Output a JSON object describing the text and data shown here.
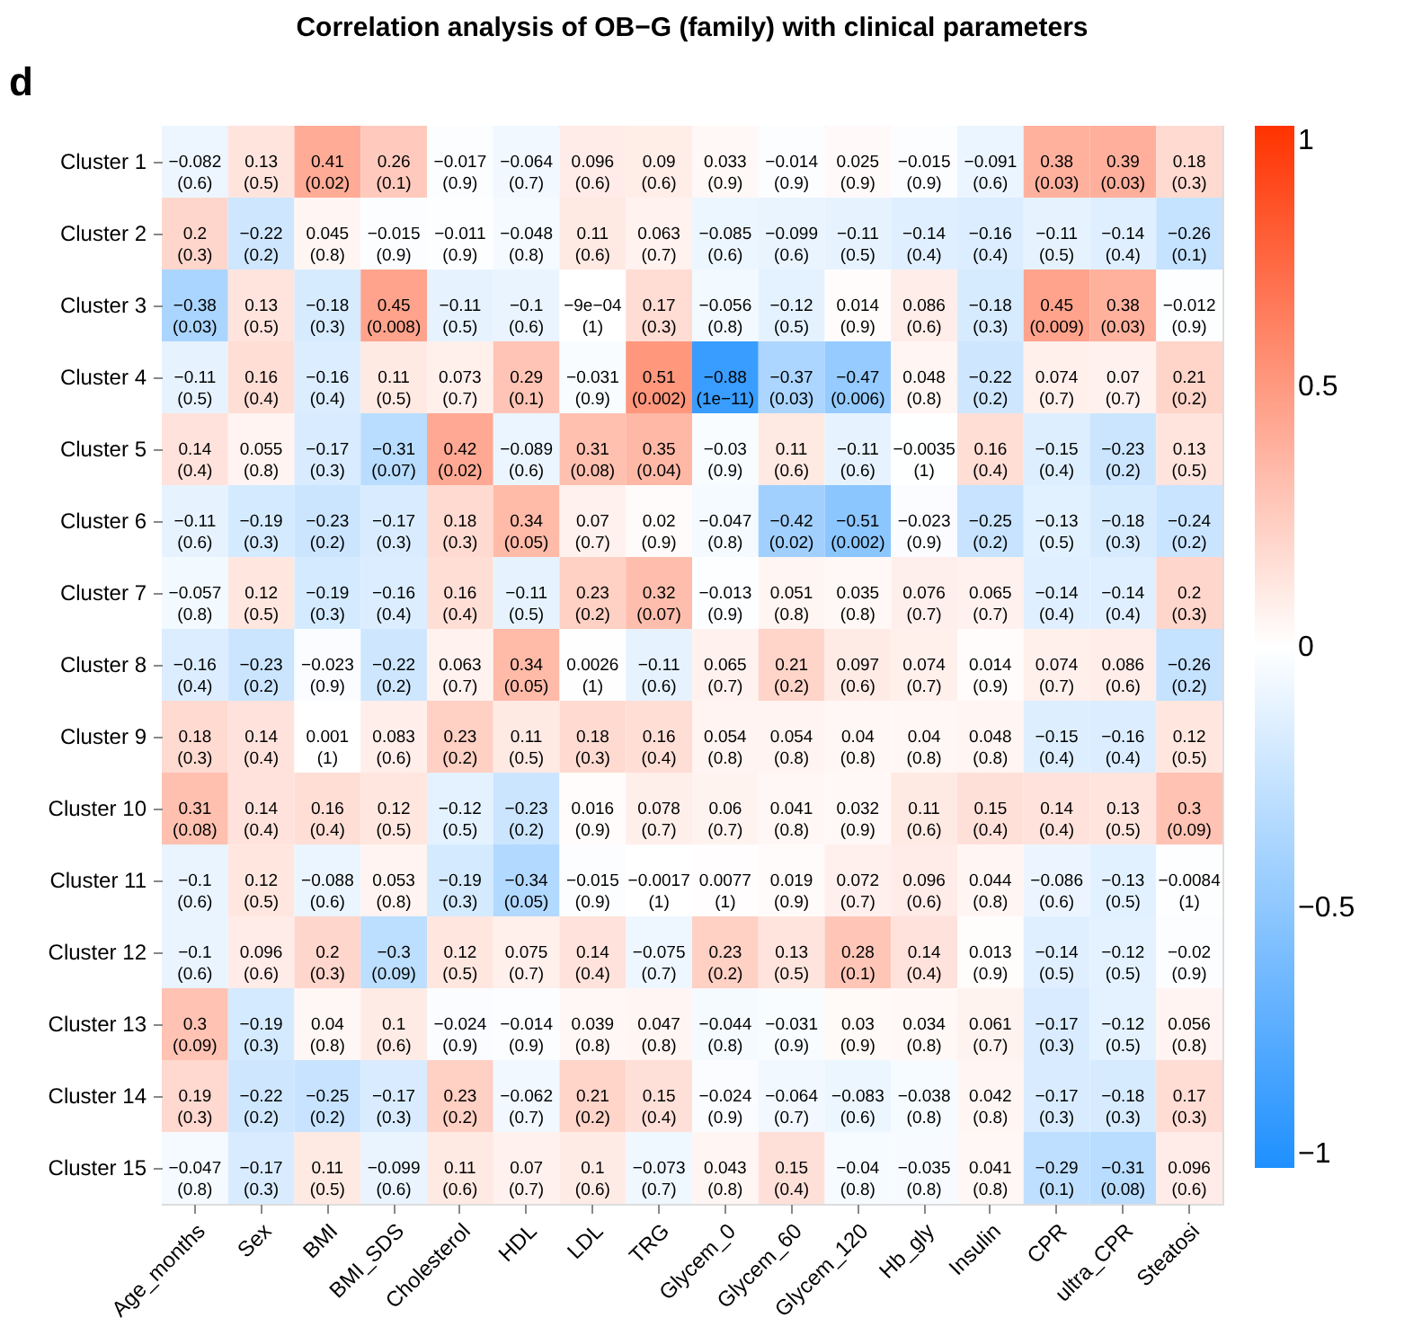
{
  "chart_data": {
    "type": "heatmap",
    "title": "Correlation analysis of OB−G (family) with clinical parameters",
    "annotations": [
      "d"
    ],
    "categories": [
      "Age_months",
      "Sex",
      "BMI",
      "BMI_SDS",
      "Cholesterol",
      "HDL",
      "LDL",
      "TRG",
      "Glycem_0",
      "Glycem_60",
      "Glycem_120",
      "Hb_gly",
      "Insulin",
      "CPR",
      "ultra_CPR",
      "Steatosi"
    ],
    "y_categories": [
      "Cluster 1",
      "Cluster 2",
      "Cluster 3",
      "Cluster 4",
      "Cluster 5",
      "Cluster 6",
      "Cluster 7",
      "Cluster 8",
      "Cluster 9",
      "Cluster 10",
      "Cluster 11",
      "Cluster 12",
      "Cluster 13",
      "Cluster 14",
      "Cluster 15"
    ],
    "cells": [
      [
        -0.082,
        0.13,
        0.41,
        0.26,
        -0.017,
        -0.064,
        0.096,
        0.09,
        0.033,
        -0.014,
        0.025,
        -0.015,
        -0.091,
        0.38,
        0.39,
        0.18
      ],
      [
        0.2,
        -0.22,
        0.045,
        -0.015,
        -0.011,
        -0.048,
        0.11,
        0.063,
        -0.085,
        -0.099,
        -0.11,
        -0.14,
        -0.16,
        -0.11,
        -0.14,
        -0.26
      ],
      [
        -0.38,
        0.13,
        -0.18,
        0.45,
        -0.11,
        -0.1,
        -0.0009,
        0.17,
        -0.056,
        -0.12,
        0.014,
        0.086,
        -0.18,
        0.45,
        0.38,
        -0.012
      ],
      [
        -0.11,
        0.16,
        -0.16,
        0.11,
        0.073,
        0.29,
        -0.031,
        0.51,
        -0.88,
        -0.37,
        -0.47,
        0.048,
        -0.22,
        0.074,
        0.07,
        0.21
      ],
      [
        0.14,
        0.055,
        -0.17,
        -0.31,
        0.42,
        -0.089,
        0.31,
        0.35,
        -0.03,
        0.11,
        -0.11,
        -0.0035,
        0.16,
        -0.15,
        -0.23,
        0.13
      ],
      [
        -0.11,
        -0.19,
        -0.23,
        -0.17,
        0.18,
        0.34,
        0.07,
        0.02,
        -0.047,
        -0.42,
        -0.51,
        -0.023,
        -0.25,
        -0.13,
        -0.18,
        -0.24
      ],
      [
        -0.057,
        0.12,
        -0.19,
        -0.16,
        0.16,
        -0.11,
        0.23,
        0.32,
        -0.013,
        0.051,
        0.035,
        0.076,
        0.065,
        -0.14,
        -0.14,
        0.2
      ],
      [
        -0.16,
        -0.23,
        -0.023,
        -0.22,
        0.063,
        0.34,
        0.0026,
        -0.11,
        0.065,
        0.21,
        0.097,
        0.074,
        0.014,
        0.074,
        0.086,
        -0.26
      ],
      [
        0.18,
        0.14,
        0.001,
        0.083,
        0.23,
        0.11,
        0.18,
        0.16,
        0.054,
        0.054,
        0.04,
        0.04,
        0.048,
        -0.15,
        -0.16,
        0.12
      ],
      [
        0.31,
        0.14,
        0.16,
        0.12,
        -0.12,
        -0.23,
        0.016,
        0.078,
        0.06,
        0.041,
        0.032,
        0.11,
        0.15,
        0.14,
        0.13,
        0.3
      ],
      [
        -0.1,
        0.12,
        -0.088,
        0.053,
        -0.19,
        -0.34,
        -0.015,
        -0.0017,
        0.0077,
        0.019,
        0.072,
        0.096,
        0.044,
        -0.086,
        -0.13,
        -0.0084
      ],
      [
        -0.1,
        0.096,
        0.2,
        -0.3,
        0.12,
        0.075,
        0.14,
        -0.075,
        0.23,
        0.13,
        0.28,
        0.14,
        0.013,
        -0.14,
        -0.12,
        -0.02
      ],
      [
        0.3,
        -0.19,
        0.04,
        0.1,
        -0.024,
        -0.014,
        0.039,
        0.047,
        -0.044,
        -0.031,
        0.03,
        0.034,
        0.061,
        -0.17,
        -0.12,
        0.056
      ],
      [
        0.19,
        -0.22,
        -0.25,
        -0.17,
        0.23,
        -0.062,
        0.21,
        0.15,
        -0.024,
        -0.064,
        -0.083,
        -0.038,
        0.042,
        -0.17,
        -0.18,
        0.17
      ],
      [
        -0.047,
        -0.17,
        0.11,
        -0.099,
        0.11,
        0.07,
        0.1,
        -0.073,
        0.043,
        0.15,
        -0.04,
        -0.035,
        0.041,
        -0.29,
        -0.31,
        0.096
      ]
    ],
    "cell_labels": [
      [
        "−0.082\n(0.6)",
        "0.13\n(0.5)",
        "0.41\n(0.02)",
        "0.26\n(0.1)",
        "−0.017\n(0.9)",
        "−0.064\n(0.7)",
        "0.096\n(0.6)",
        "0.09\n(0.6)",
        "0.033\n(0.9)",
        "−0.014\n(0.9)",
        "0.025\n(0.9)",
        "−0.015\n(0.9)",
        "−0.091\n(0.6)",
        "0.38\n(0.03)",
        "0.39\n(0.03)",
        "0.18\n(0.3)"
      ],
      [
        "0.2\n(0.3)",
        "−0.22\n(0.2)",
        "0.045\n(0.8)",
        "−0.015\n(0.9)",
        "−0.011\n(0.9)",
        "−0.048\n(0.8)",
        "0.11\n(0.6)",
        "0.063\n(0.7)",
        "−0.085\n(0.6)",
        "−0.099\n(0.6)",
        "−0.11\n(0.5)",
        "−0.14\n(0.4)",
        "−0.16\n(0.4)",
        "−0.11\n(0.5)",
        "−0.14\n(0.4)",
        "−0.26\n(0.1)"
      ],
      [
        "−0.38\n(0.03)",
        "0.13\n(0.5)",
        "−0.18\n(0.3)",
        "0.45\n(0.008)",
        "−0.11\n(0.5)",
        "−0.1\n(0.6)",
        "−9e−04\n(1)",
        "0.17\n(0.3)",
        "−0.056\n(0.8)",
        "−0.12\n(0.5)",
        "0.014\n(0.9)",
        "0.086\n(0.6)",
        "−0.18\n(0.3)",
        "0.45\n(0.009)",
        "0.38\n(0.03)",
        "−0.012\n(0.9)"
      ],
      [
        "−0.11\n(0.5)",
        "0.16\n(0.4)",
        "−0.16\n(0.4)",
        "0.11\n(0.5)",
        "0.073\n(0.7)",
        "0.29\n(0.1)",
        "−0.031\n(0.9)",
        "0.51\n(0.002)",
        "−0.88\n(1e−11)",
        "−0.37\n(0.03)",
        "−0.47\n(0.006)",
        "0.048\n(0.8)",
        "−0.22\n(0.2)",
        "0.074\n(0.7)",
        "0.07\n(0.7)",
        "0.21\n(0.2)"
      ],
      [
        "0.14\n(0.4)",
        "0.055\n(0.8)",
        "−0.17\n(0.3)",
        "−0.31\n(0.07)",
        "0.42\n(0.02)",
        "−0.089\n(0.6)",
        "0.31\n(0.08)",
        "0.35\n(0.04)",
        "−0.03\n(0.9)",
        "0.11\n(0.6)",
        "−0.11\n(0.6)",
        "−0.0035\n(1)",
        "0.16\n(0.4)",
        "−0.15\n(0.4)",
        "−0.23\n(0.2)",
        "0.13\n(0.5)"
      ],
      [
        "−0.11\n(0.6)",
        "−0.19\n(0.3)",
        "−0.23\n(0.2)",
        "−0.17\n(0.3)",
        "0.18\n(0.3)",
        "0.34\n(0.05)",
        "0.07\n(0.7)",
        "0.02\n(0.9)",
        "−0.047\n(0.8)",
        "−0.42\n(0.02)",
        "−0.51\n(0.002)",
        "−0.023\n(0.9)",
        "−0.25\n(0.2)",
        "−0.13\n(0.5)",
        "−0.18\n(0.3)",
        "−0.24\n(0.2)"
      ],
      [
        "−0.057\n(0.8)",
        "0.12\n(0.5)",
        "−0.19\n(0.3)",
        "−0.16\n(0.4)",
        "0.16\n(0.4)",
        "−0.11\n(0.5)",
        "0.23\n(0.2)",
        "0.32\n(0.07)",
        "−0.013\n(0.9)",
        "0.051\n(0.8)",
        "0.035\n(0.8)",
        "0.076\n(0.7)",
        "0.065\n(0.7)",
        "−0.14\n(0.4)",
        "−0.14\n(0.4)",
        "0.2\n(0.3)"
      ],
      [
        "−0.16\n(0.4)",
        "−0.23\n(0.2)",
        "−0.023\n(0.9)",
        "−0.22\n(0.2)",
        "0.063\n(0.7)",
        "0.34\n(0.05)",
        "0.0026\n(1)",
        "−0.11\n(0.6)",
        "0.065\n(0.7)",
        "0.21\n(0.2)",
        "0.097\n(0.6)",
        "0.074\n(0.7)",
        "0.014\n(0.9)",
        "0.074\n(0.7)",
        "0.086\n(0.6)",
        "−0.26\n(0.2)"
      ],
      [
        "0.18\n(0.3)",
        "0.14\n(0.4)",
        "0.001\n(1)",
        "0.083\n(0.6)",
        "0.23\n(0.2)",
        "0.11\n(0.5)",
        "0.18\n(0.3)",
        "0.16\n(0.4)",
        "0.054\n(0.8)",
        "0.054\n(0.8)",
        "0.04\n(0.8)",
        "0.04\n(0.8)",
        "0.048\n(0.8)",
        "−0.15\n(0.4)",
        "−0.16\n(0.4)",
        "0.12\n(0.5)"
      ],
      [
        "0.31\n(0.08)",
        "0.14\n(0.4)",
        "0.16\n(0.4)",
        "0.12\n(0.5)",
        "−0.12\n(0.5)",
        "−0.23\n(0.2)",
        "0.016\n(0.9)",
        "0.078\n(0.7)",
        "0.06\n(0.7)",
        "0.041\n(0.8)",
        "0.032\n(0.9)",
        "0.11\n(0.6)",
        "0.15\n(0.4)",
        "0.14\n(0.4)",
        "0.13\n(0.5)",
        "0.3\n(0.09)"
      ],
      [
        "−0.1\n(0.6)",
        "0.12\n(0.5)",
        "−0.088\n(0.6)",
        "0.053\n(0.8)",
        "−0.19\n(0.3)",
        "−0.34\n(0.05)",
        "−0.015\n(0.9)",
        "−0.0017\n(1)",
        "0.0077\n(1)",
        "0.019\n(0.9)",
        "0.072\n(0.7)",
        "0.096\n(0.6)",
        "0.044\n(0.8)",
        "−0.086\n(0.6)",
        "−0.13\n(0.5)",
        "−0.0084\n(1)"
      ],
      [
        "−0.1\n(0.6)",
        "0.096\n(0.6)",
        "0.2\n(0.3)",
        "−0.3\n(0.09)",
        "0.12\n(0.5)",
        "0.075\n(0.7)",
        "0.14\n(0.4)",
        "−0.075\n(0.7)",
        "0.23\n(0.2)",
        "0.13\n(0.5)",
        "0.28\n(0.1)",
        "0.14\n(0.4)",
        "0.013\n(0.9)",
        "−0.14\n(0.5)",
        "−0.12\n(0.5)",
        "−0.02\n(0.9)"
      ],
      [
        "0.3\n(0.09)",
        "−0.19\n(0.3)",
        "0.04\n(0.8)",
        "0.1\n(0.6)",
        "−0.024\n(0.9)",
        "−0.014\n(0.9)",
        "0.039\n(0.8)",
        "0.047\n(0.8)",
        "−0.044\n(0.8)",
        "−0.031\n(0.9)",
        "0.03\n(0.9)",
        "0.034\n(0.8)",
        "0.061\n(0.7)",
        "−0.17\n(0.3)",
        "−0.12\n(0.5)",
        "0.056\n(0.8)"
      ],
      [
        "0.19\n(0.3)",
        "−0.22\n(0.2)",
        "−0.25\n(0.2)",
        "−0.17\n(0.3)",
        "0.23\n(0.2)",
        "−0.062\n(0.7)",
        "0.21\n(0.2)",
        "0.15\n(0.4)",
        "−0.024\n(0.9)",
        "−0.064\n(0.7)",
        "−0.083\n(0.6)",
        "−0.038\n(0.8)",
        "0.042\n(0.8)",
        "−0.17\n(0.3)",
        "−0.18\n(0.3)",
        "0.17\n(0.3)"
      ],
      [
        "−0.047\n(0.8)",
        "−0.17\n(0.3)",
        "0.11\n(0.5)",
        "−0.099\n(0.6)",
        "0.11\n(0.6)",
        "0.07\n(0.7)",
        "0.1\n(0.6)",
        "−0.073\n(0.7)",
        "0.043\n(0.8)",
        "0.15\n(0.4)",
        "−0.04\n(0.8)",
        "−0.035\n(0.8)",
        "0.041\n(0.8)",
        "−0.29\n(0.1)",
        "−0.31\n(0.08)",
        "0.096\n(0.6)"
      ]
    ],
    "clim": [
      -1,
      1
    ],
    "cticks": [
      -1,
      -0.5,
      0,
      0.5,
      1
    ]
  }
}
